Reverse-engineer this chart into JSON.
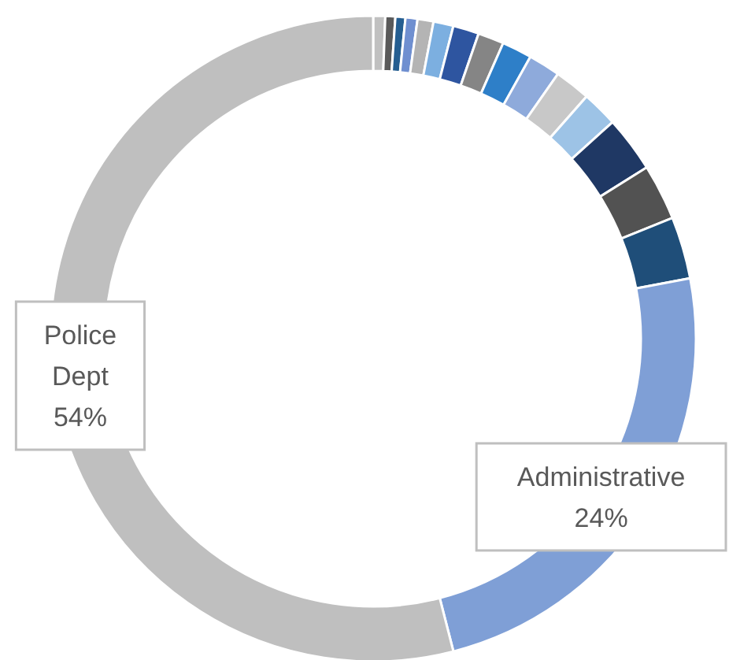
{
  "chart_data": {
    "type": "donut",
    "categories": [
      null,
      null,
      null,
      null,
      null,
      null,
      null,
      null,
      null,
      null,
      null,
      null,
      null,
      null,
      null,
      "Administrative",
      "Police Dept"
    ],
    "values": [
      0.6,
      0.5,
      0.5,
      0.6,
      0.8,
      1.0,
      1.3,
      1.3,
      1.5,
      1.6,
      1.8,
      1.8,
      2.8,
      2.8,
      3.1,
      24,
      54
    ],
    "colors": [
      "#c0c0c0",
      "#5a5a5a",
      "#255e91",
      "#6f8fd0",
      "#b4b4b4",
      "#7cafe0",
      "#2e55a0",
      "#858585",
      "#2e7fc8",
      "#8eaadb",
      "#c8c8c8",
      "#9dc3e6",
      "#1f3864",
      "#525252",
      "#1f4e79",
      "#7f9fd6",
      "#bfbfbf"
    ],
    "value_labels": [
      null,
      null,
      null,
      null,
      null,
      null,
      null,
      null,
      null,
      null,
      null,
      null,
      null,
      null,
      null,
      "24%",
      "54%"
    ]
  }
}
